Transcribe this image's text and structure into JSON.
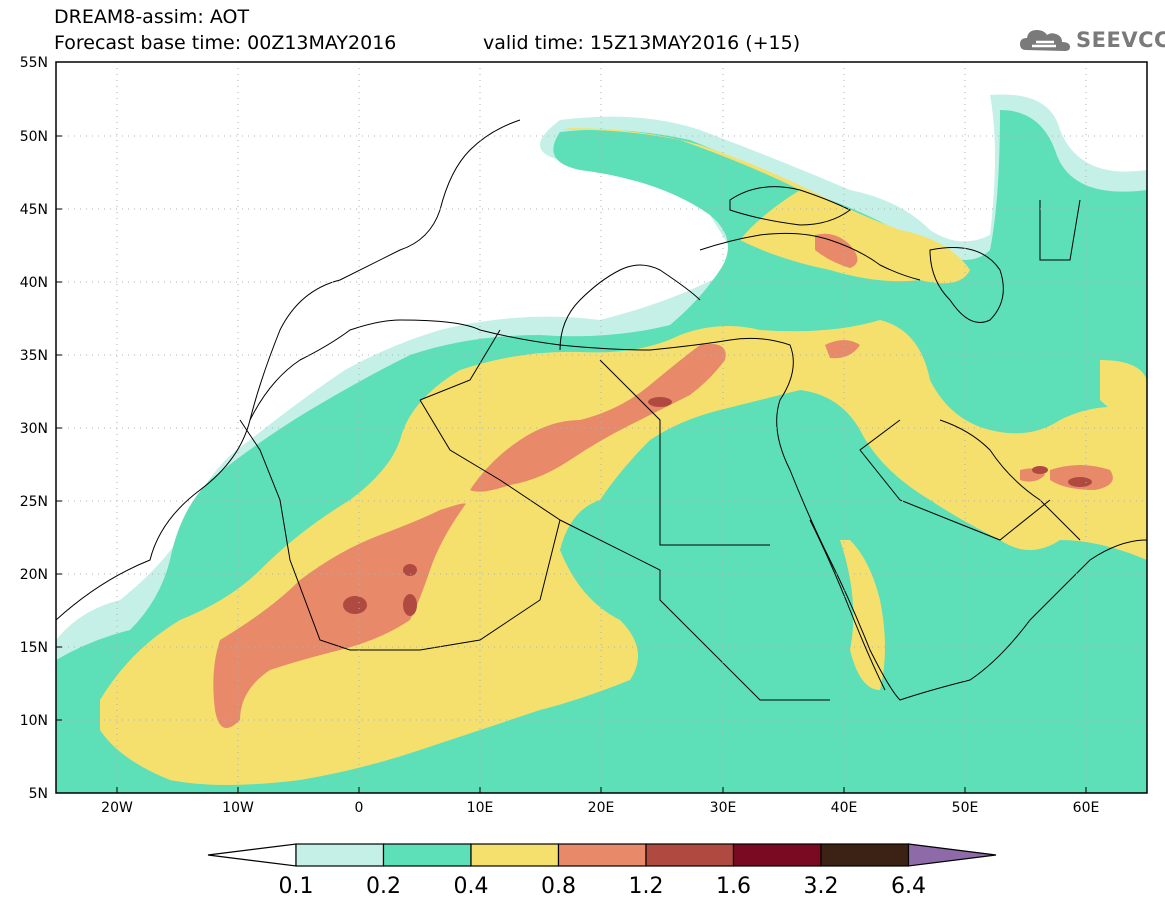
{
  "header": {
    "model_line": "DREAM8-assim: AOT",
    "base_time": "Forecast base time: 00Z13MAY2016",
    "valid_time": "valid time: 15Z13MAY2016 (+15)",
    "logo_text": "SEEVCCC",
    "logo_icon": "cloud-icon"
  },
  "map": {
    "lon_range": [
      -25,
      65
    ],
    "lat_range": [
      5,
      55
    ],
    "lat_labels": [
      "55N",
      "50N",
      "45N",
      "40N",
      "35N",
      "30N",
      "25N",
      "20N",
      "15N",
      "10N",
      "5N"
    ],
    "lon_labels": [
      "20W",
      "10W",
      "0",
      "10E",
      "20E",
      "30E",
      "40E",
      "50E",
      "60E"
    ]
  },
  "colorbar": {
    "labels": [
      "0.1",
      "0.2",
      "0.4",
      "0.8",
      "1.2",
      "1.6",
      "3.2",
      "6.4"
    ],
    "colors": [
      "#ffffff",
      "#c4f0e8",
      "#5ddfb8",
      "#f5e06e",
      "#e8896a",
      "#b04a40",
      "#7a0a22",
      "#3c2214",
      "#8f6aa8"
    ]
  },
  "colors": {
    "aot_0_1": "#c4f0e8",
    "aot_0_2": "#5ddfb8",
    "aot_0_4": "#f5e06e",
    "aot_0_8": "#e8896a",
    "aot_1_2": "#b04a40"
  }
}
